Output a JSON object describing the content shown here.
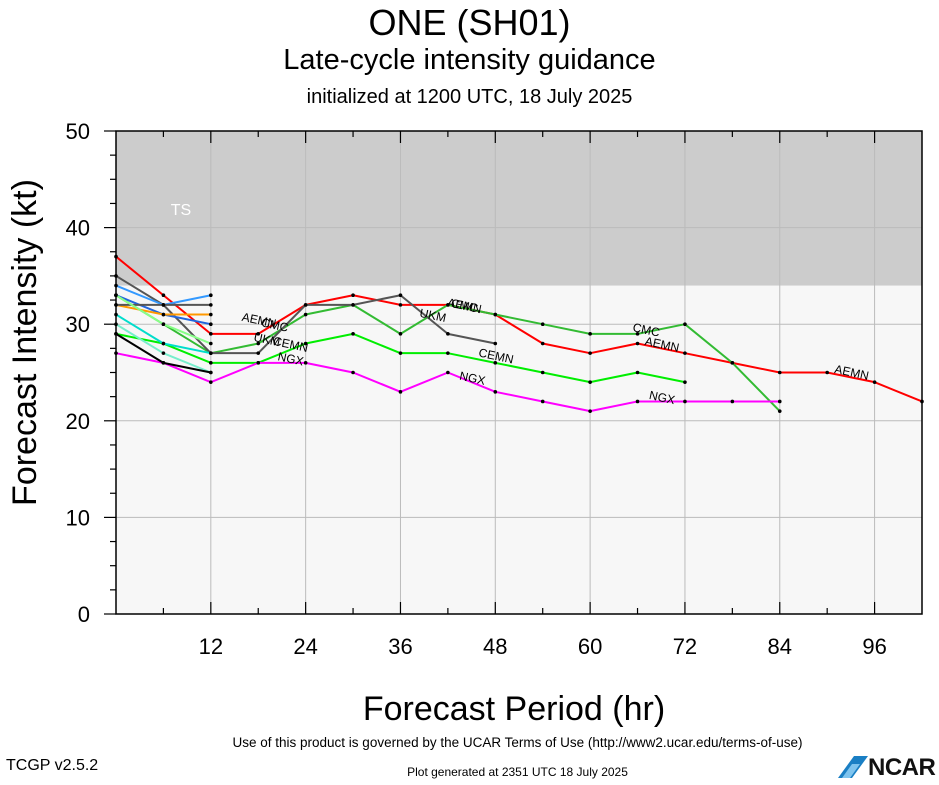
{
  "title": "ONE (SH01)",
  "subtitle": "Late-cycle intensity guidance",
  "initialized": "initialized at 1200 UTC, 18 July 2025",
  "footer": {
    "terms": "Use of this product is governed by the UCAR Terms of Use (http://www2.ucar.edu/terms-of-use)",
    "version": "TCGP v2.5.2",
    "generated": "Plot generated at 2351 UTC   18 July 2025",
    "logo_text": "NCAR"
  },
  "chart_data": {
    "type": "line",
    "xlabel": "Forecast Period (hr)",
    "ylabel": "Forecast Intensity (kt)",
    "xlim": [
      0,
      102
    ],
    "ylim": [
      0,
      50
    ],
    "xticks": [
      12,
      24,
      36,
      48,
      60,
      72,
      84,
      96
    ],
    "yticks": [
      0,
      10,
      20,
      30,
      40,
      50
    ],
    "grid": true,
    "bands": [
      {
        "label": "TS",
        "from": 34,
        "to": 50,
        "color": "#cccccc"
      }
    ],
    "plot_background": "#f7f7f7",
    "series": [
      {
        "name": "AEMN",
        "color": "#ff0000",
        "points": [
          [
            0,
            37
          ],
          [
            6,
            33
          ],
          [
            12,
            29
          ],
          [
            18,
            29
          ],
          [
            24,
            32
          ],
          [
            30,
            33
          ],
          [
            36,
            32
          ],
          [
            42,
            32
          ],
          [
            48,
            31
          ],
          [
            54,
            28
          ],
          [
            60,
            27
          ],
          [
            66,
            28
          ],
          [
            72,
            27
          ],
          [
            78,
            26
          ],
          [
            84,
            25
          ],
          [
            90,
            25
          ],
          [
            96,
            24
          ],
          [
            102,
            22
          ]
        ],
        "labels": [
          {
            "x": 18,
            "y": 30
          },
          {
            "x": 44,
            "y": 31.5
          },
          {
            "x": 69,
            "y": 27.5
          },
          {
            "x": 93,
            "y": 24.6
          }
        ]
      },
      {
        "name": "CMC",
        "color": "#33bb33",
        "points": [
          [
            0,
            33
          ],
          [
            6,
            30
          ],
          [
            12,
            27
          ],
          [
            18,
            28
          ],
          [
            24,
            31
          ],
          [
            30,
            32
          ],
          [
            36,
            29
          ],
          [
            42,
            32
          ],
          [
            48,
            31
          ],
          [
            54,
            30
          ],
          [
            60,
            29
          ],
          [
            66,
            29
          ],
          [
            72,
            30
          ],
          [
            78,
            26
          ],
          [
            84,
            21
          ]
        ],
        "labels": [
          {
            "x": 20,
            "y": 29.5
          },
          {
            "x": 44,
            "y": 31.5
          },
          {
            "x": 67,
            "y": 29
          }
        ]
      },
      {
        "name": "UKM",
        "color": "#555555",
        "points": [
          [
            0,
            35
          ],
          [
            6,
            32
          ],
          [
            12,
            27
          ],
          [
            18,
            27
          ],
          [
            24,
            32
          ],
          [
            30,
            32
          ],
          [
            36,
            33
          ],
          [
            42,
            29
          ],
          [
            48,
            28
          ]
        ],
        "labels": [
          {
            "x": 19,
            "y": 28
          },
          {
            "x": 40,
            "y": 30.5
          }
        ]
      },
      {
        "name": "CEMN",
        "color": "#00ee00",
        "points": [
          [
            0,
            29
          ],
          [
            6,
            28
          ],
          [
            12,
            26
          ],
          [
            18,
            26
          ],
          [
            24,
            28
          ],
          [
            30,
            29
          ],
          [
            36,
            27
          ],
          [
            42,
            27
          ],
          [
            48,
            26
          ],
          [
            54,
            25
          ],
          [
            60,
            24
          ],
          [
            66,
            25
          ],
          [
            72,
            24
          ]
        ],
        "labels": [
          {
            "x": 22,
            "y": 27.5
          },
          {
            "x": 48,
            "y": 26.3
          }
        ]
      },
      {
        "name": "NGX",
        "color": "#ff00ff",
        "points": [
          [
            0,
            27
          ],
          [
            6,
            26
          ],
          [
            12,
            24
          ],
          [
            18,
            26
          ],
          [
            24,
            26
          ],
          [
            30,
            25
          ],
          [
            36,
            23
          ],
          [
            42,
            25
          ],
          [
            48,
            23
          ],
          [
            54,
            22
          ],
          [
            60,
            21
          ],
          [
            66,
            22
          ],
          [
            72,
            22
          ],
          [
            78,
            22
          ],
          [
            84,
            22
          ]
        ],
        "labels": [
          {
            "x": 22,
            "y": 26
          },
          {
            "x": 45,
            "y": 24
          },
          {
            "x": 69,
            "y": 22
          }
        ]
      },
      {
        "name": "",
        "color": "#3399ff",
        "points": [
          [
            0,
            34
          ],
          [
            6,
            32
          ],
          [
            12,
            33
          ]
        ],
        "labels": []
      },
      {
        "name": "",
        "color": "#2266dd",
        "points": [
          [
            0,
            33
          ],
          [
            6,
            31
          ],
          [
            12,
            30
          ]
        ],
        "labels": []
      },
      {
        "name": "",
        "color": "#ff9900",
        "points": [
          [
            0,
            32
          ],
          [
            6,
            31
          ],
          [
            12,
            31
          ]
        ],
        "labels": []
      },
      {
        "name": "",
        "color": "#555555",
        "points": [
          [
            0,
            32
          ],
          [
            6,
            32
          ],
          [
            12,
            32
          ]
        ],
        "labels": []
      },
      {
        "name": "",
        "color": "#00ddcc",
        "points": [
          [
            0,
            31
          ],
          [
            6,
            28
          ],
          [
            12,
            27
          ]
        ],
        "labels": []
      },
      {
        "name": "",
        "color": "#88ff88",
        "points": [
          [
            0,
            33
          ],
          [
            6,
            30
          ],
          [
            12,
            28
          ]
        ],
        "labels": []
      },
      {
        "name": "",
        "color": "#77eecc",
        "points": [
          [
            0,
            30
          ],
          [
            6,
            27
          ],
          [
            12,
            25
          ]
        ],
        "labels": []
      },
      {
        "name": "",
        "color": "#000000",
        "points": [
          [
            0,
            29
          ],
          [
            6,
            26
          ],
          [
            12,
            25
          ]
        ],
        "labels": []
      }
    ]
  }
}
